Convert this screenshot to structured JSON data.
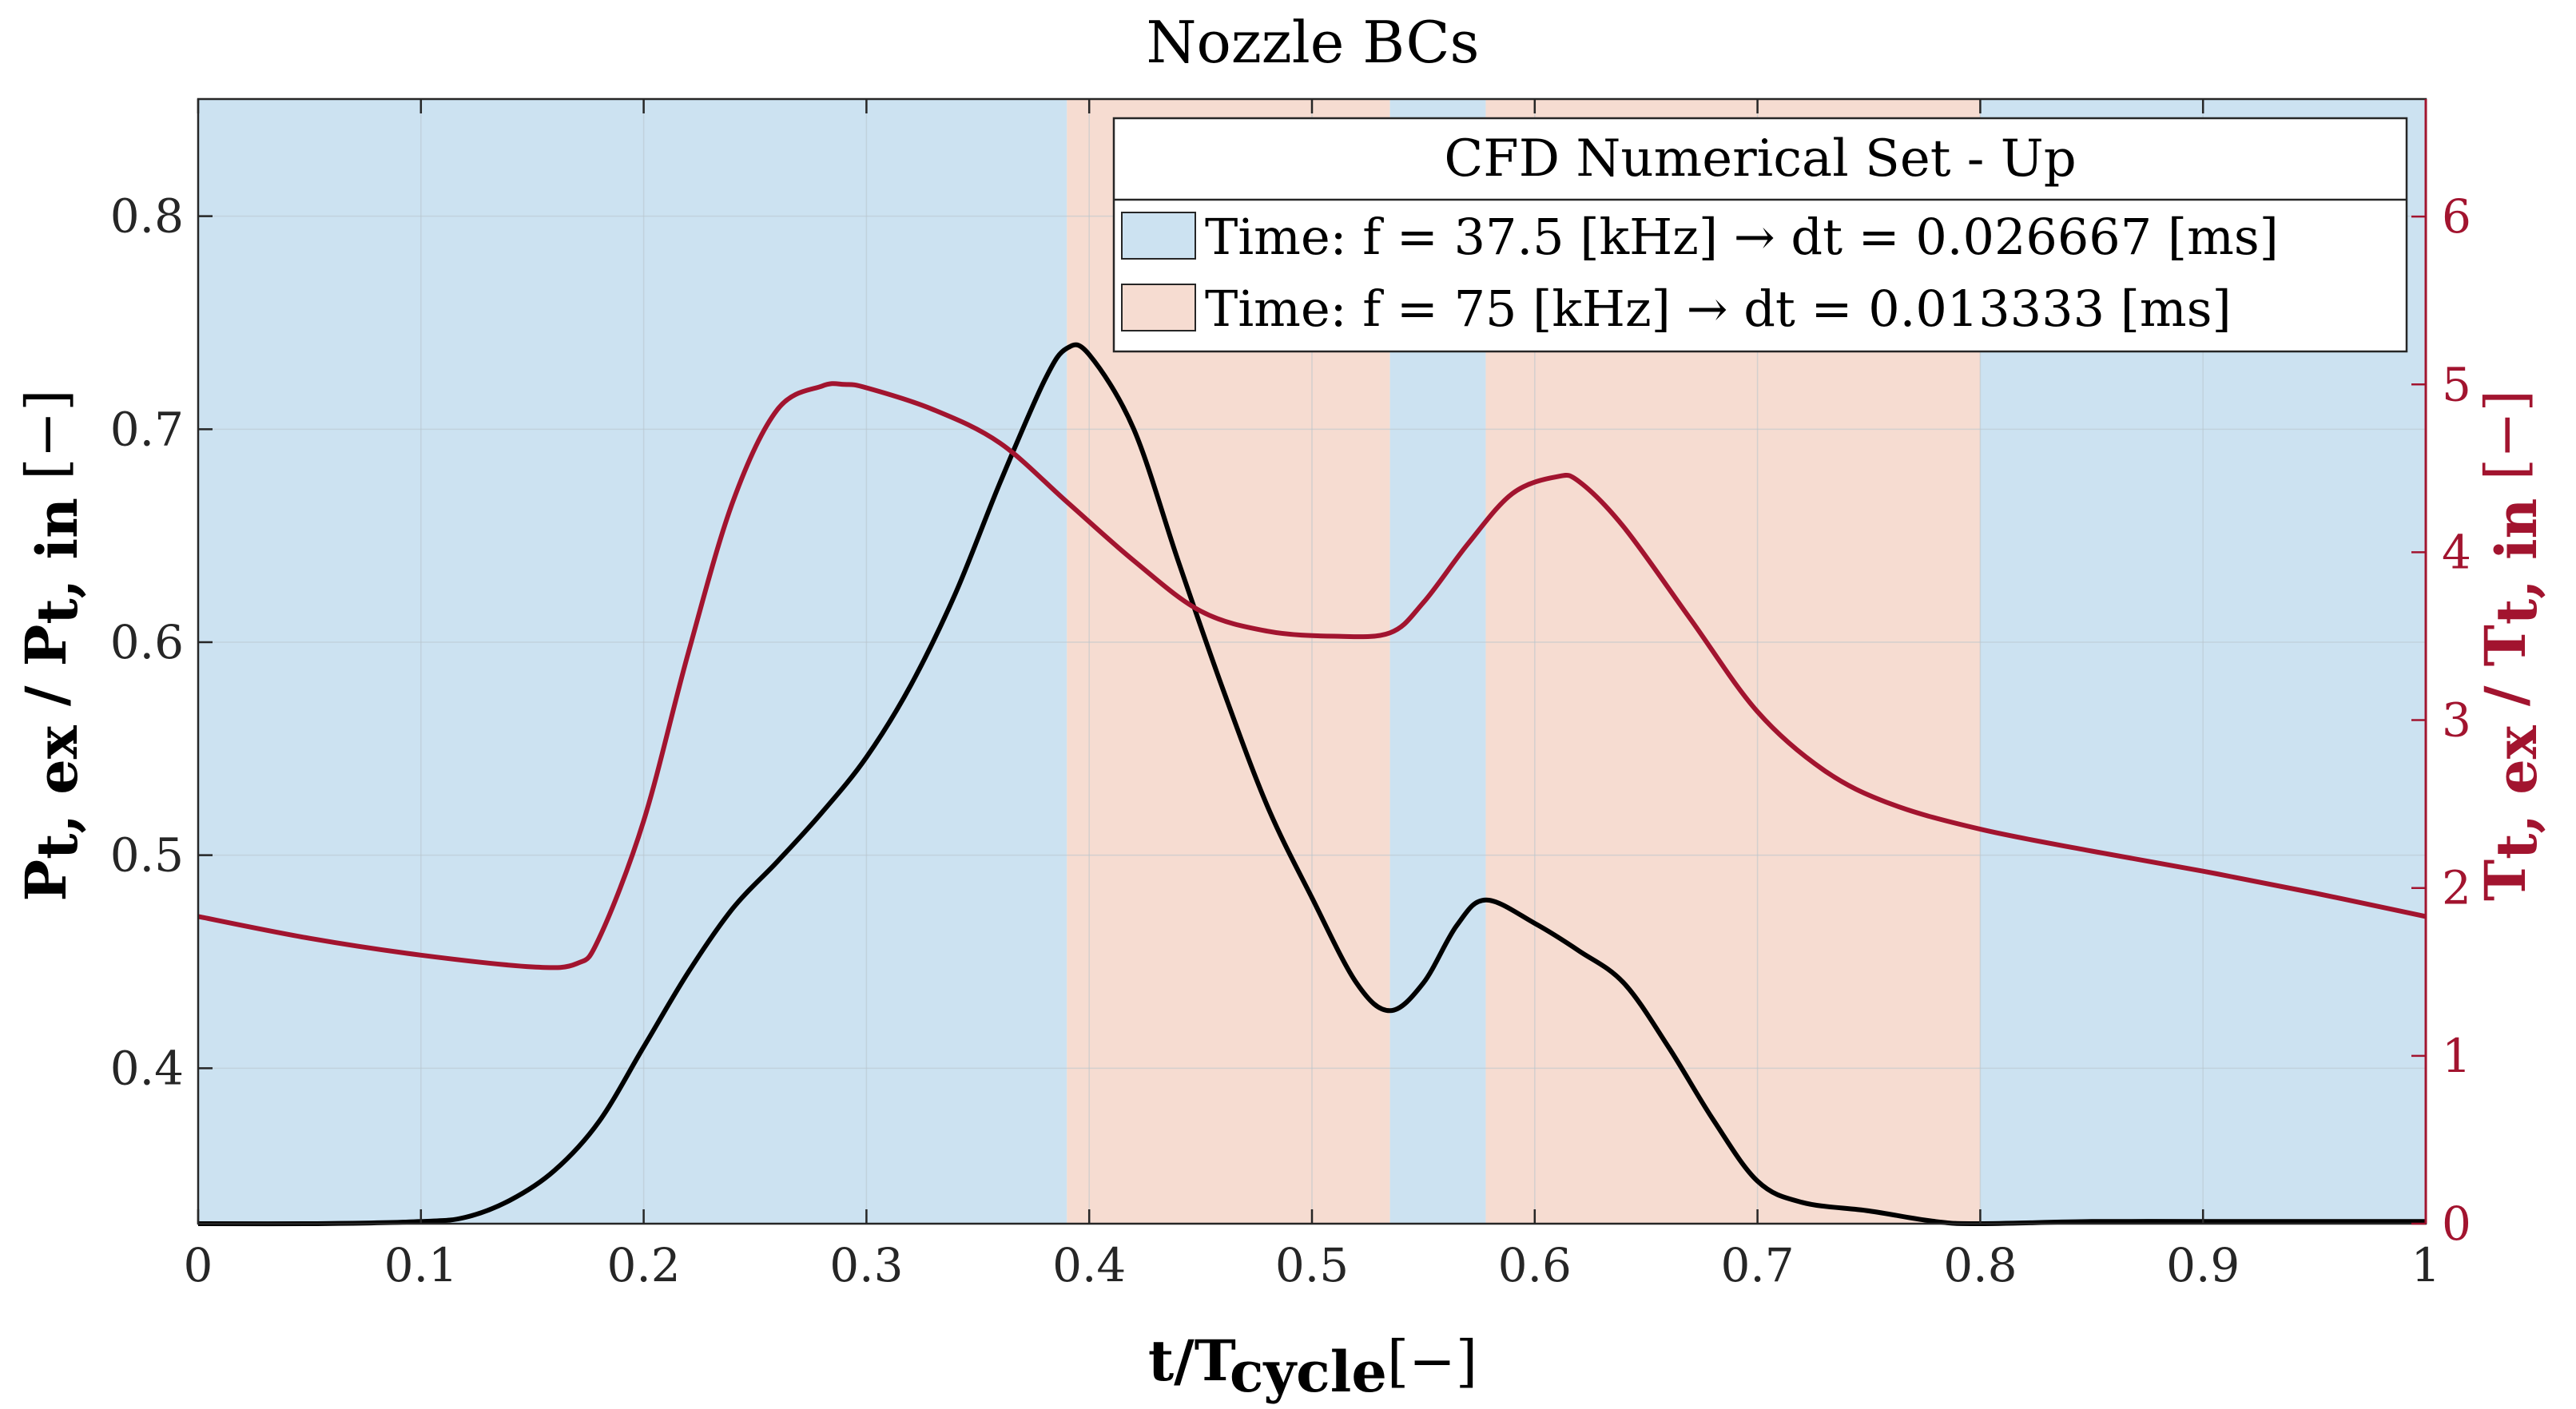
{
  "chart_data": {
    "type": "line",
    "title": "Nozzle BCs",
    "xlabel": {
      "main": "t/T",
      "sub": "cycle",
      "unit": "[−]"
    },
    "ylabel_left": {
      "num": "P",
      "num_sub": "t, ex",
      "sep": " / ",
      "den": "P",
      "den_sub": "t, in",
      "unit": " [−]"
    },
    "ylabel_right": {
      "num": "T",
      "num_sub": "t, ex",
      "sep": " / ",
      "den": "T",
      "den_sub": "t, in",
      "unit": " [−]"
    },
    "xlim": [
      0,
      1
    ],
    "ylim_left": [
      0.327,
      0.855
    ],
    "ylim_right": [
      0,
      6.7
    ],
    "xticks": [
      0,
      0.1,
      0.2,
      0.3,
      0.4,
      0.5,
      0.6,
      0.7,
      0.8,
      0.9,
      1
    ],
    "xtick_labels": [
      "0",
      "0.1",
      "0.2",
      "0.3",
      "0.4",
      "0.5",
      "0.6",
      "0.7",
      "0.8",
      "0.9",
      "1"
    ],
    "yticks_left": [
      0.4,
      0.5,
      0.6,
      0.7,
      0.8
    ],
    "ytick_labels_left": [
      "0.4",
      "0.5",
      "0.6",
      "0.7",
      "0.8"
    ],
    "yticks_right": [
      0,
      1,
      2,
      3,
      4,
      5,
      6
    ],
    "ytick_labels_right": [
      "0",
      "1",
      "2",
      "3",
      "4",
      "5",
      "6"
    ],
    "grid": true,
    "colors": {
      "left_axis": "#000000",
      "right_axis": "#a2142f",
      "blue_band": "#cce2f1",
      "orange_band": "#f6dcd1",
      "grid": "#b8c4cc"
    },
    "bands": [
      {
        "x0": 0.0,
        "x1": 0.39,
        "kind": "blue"
      },
      {
        "x0": 0.39,
        "x1": 0.535,
        "kind": "orange"
      },
      {
        "x0": 0.535,
        "x1": 0.578,
        "kind": "blue"
      },
      {
        "x0": 0.578,
        "x1": 0.8,
        "kind": "orange"
      },
      {
        "x0": 0.8,
        "x1": 1.0,
        "kind": "blue"
      }
    ],
    "legend": {
      "title": "CFD Numerical Set - Up",
      "location": "top-right",
      "entries": [
        {
          "kind": "blue",
          "label": "Time:  f = 37.5 [kHz]  →  dt = 0.026667 [ms]"
        },
        {
          "kind": "orange",
          "label": "Time:  f = 75 [kHz]  →  dt = 0.013333 [ms]"
        }
      ]
    },
    "series": [
      {
        "name": "P_t,ex / P_t,in",
        "axis": "left",
        "color": "#000000",
        "x": [
          0,
          0.05,
          0.1,
          0.12,
          0.14,
          0.16,
          0.18,
          0.2,
          0.22,
          0.24,
          0.26,
          0.28,
          0.3,
          0.32,
          0.34,
          0.36,
          0.38,
          0.39,
          0.4,
          0.42,
          0.44,
          0.46,
          0.48,
          0.5,
          0.52,
          0.535,
          0.55,
          0.565,
          0.578,
          0.6,
          0.62,
          0.64,
          0.66,
          0.68,
          0.7,
          0.72,
          0.75,
          0.78,
          0.8,
          0.85,
          0.9,
          0.95,
          1.0
        ],
        "y": [
          0.327,
          0.327,
          0.328,
          0.33,
          0.338,
          0.352,
          0.375,
          0.41,
          0.445,
          0.475,
          0.497,
          0.52,
          0.546,
          0.58,
          0.623,
          0.675,
          0.723,
          0.738,
          0.735,
          0.7,
          0.638,
          0.578,
          0.523,
          0.48,
          0.44,
          0.427,
          0.44,
          0.467,
          0.479,
          0.468,
          0.455,
          0.44,
          0.41,
          0.376,
          0.347,
          0.337,
          0.333,
          0.328,
          0.327,
          0.328,
          0.328,
          0.328,
          0.328
        ]
      },
      {
        "name": "T_t,ex / T_t,in",
        "axis": "right",
        "color": "#a2142f",
        "x": [
          0,
          0.05,
          0.1,
          0.15,
          0.17,
          0.18,
          0.2,
          0.22,
          0.24,
          0.26,
          0.28,
          0.29,
          0.3,
          0.33,
          0.36,
          0.39,
          0.42,
          0.45,
          0.48,
          0.51,
          0.535,
          0.55,
          0.57,
          0.59,
          0.61,
          0.62,
          0.64,
          0.67,
          0.7,
          0.73,
          0.76,
          0.8,
          0.85,
          0.9,
          0.95,
          1.0
        ],
        "y": [
          1.83,
          1.7,
          1.6,
          1.53,
          1.55,
          1.7,
          2.4,
          3.4,
          4.3,
          4.85,
          4.99,
          5.0,
          4.98,
          4.85,
          4.65,
          4.3,
          3.95,
          3.65,
          3.53,
          3.5,
          3.52,
          3.7,
          4.05,
          4.35,
          4.45,
          4.42,
          4.15,
          3.6,
          3.05,
          2.7,
          2.5,
          2.35,
          2.22,
          2.1,
          1.97,
          1.83
        ]
      }
    ]
  }
}
